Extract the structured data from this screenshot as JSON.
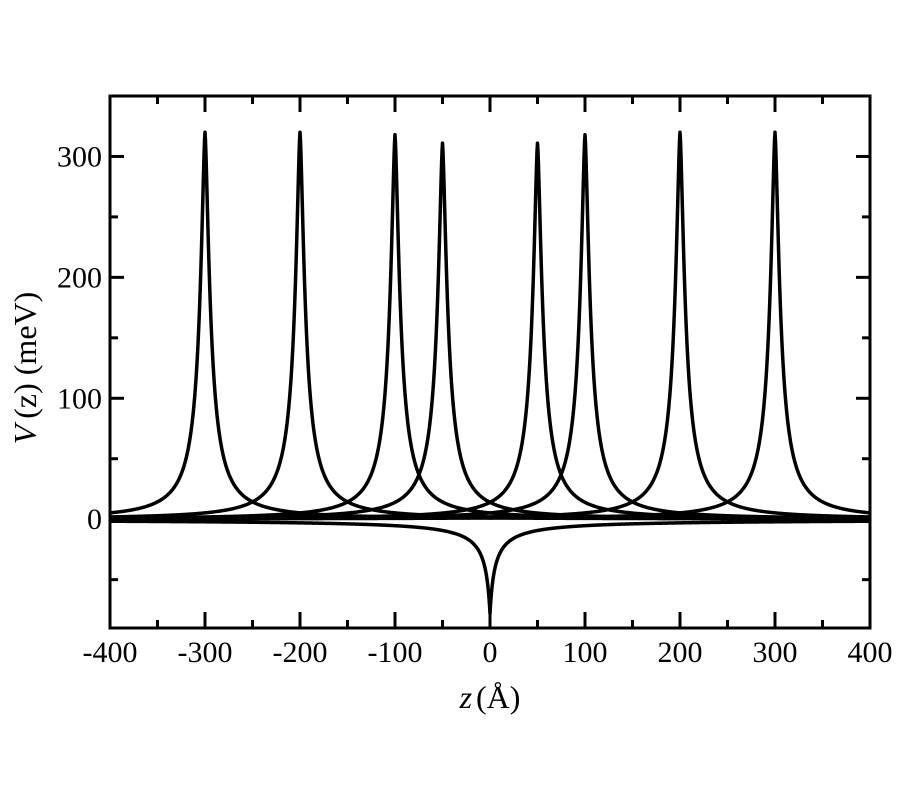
{
  "chart_data": {
    "type": "line",
    "xlabel": "z",
    "xunit": "(Å)",
    "ylabel_var": "V",
    "ylabel_arg": "(z)",
    "ylabel_arg_var": "z",
    "yunit": "(meV)",
    "xlim": [
      -400,
      400
    ],
    "ylim": [
      -90,
      350
    ],
    "xticks": [
      -400,
      -300,
      -200,
      -100,
      0,
      100,
      200,
      300,
      400
    ],
    "yticks": [
      0,
      100,
      200,
      300
    ],
    "xtick_labels": [
      "-400",
      "-300",
      "-200",
      "-100",
      "0",
      "100",
      "200",
      "300",
      "400"
    ],
    "ytick_labels": [
      "0",
      "100",
      "200",
      "300"
    ],
    "grid": false,
    "line_color": "#000000",
    "series": [
      {
        "peak_z": -300,
        "peak_V": 320
      },
      {
        "peak_z": -200,
        "peak_V": 320
      },
      {
        "peak_z": -100,
        "peak_V": 318
      },
      {
        "peak_z": -50,
        "peak_V": 311
      },
      {
        "peak_z": 50,
        "peak_V": 311
      },
      {
        "peak_z": 100,
        "peak_V": 318
      },
      {
        "peak_z": 200,
        "peak_V": 320
      },
      {
        "peak_z": 300,
        "peak_V": 320
      }
    ],
    "well": {
      "center_z": 0,
      "min_V": -78
    }
  }
}
